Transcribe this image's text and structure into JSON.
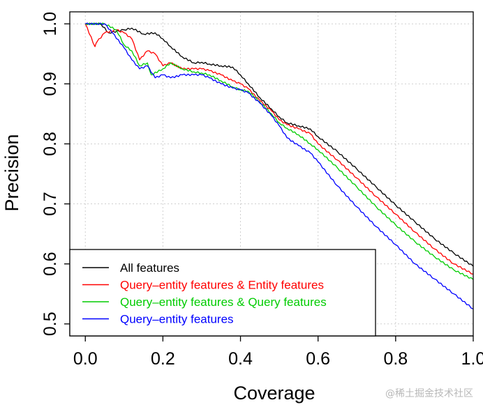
{
  "watermark": "@稀土掘金技术社区",
  "chart_data": {
    "type": "line",
    "title": "",
    "xlabel": "Coverage",
    "ylabel": "Precision",
    "xlim": [
      -0.04,
      1.0
    ],
    "ylim": [
      0.48,
      1.02
    ],
    "xticks": [
      "0.0",
      "0.2",
      "0.4",
      "0.6",
      "0.8",
      "1.0"
    ],
    "yticks": [
      "0.5",
      "0.6",
      "0.7",
      "0.8",
      "0.9",
      "1.0"
    ],
    "grid": true,
    "legend_position": "bottom-left",
    "series": [
      {
        "name": "All features",
        "color": "#000000",
        "x": [
          0.0,
          0.04,
          0.06,
          0.1,
          0.12,
          0.15,
          0.18,
          0.2,
          0.22,
          0.25,
          0.28,
          0.3,
          0.32,
          0.35,
          0.38,
          0.4,
          0.42,
          0.45,
          0.48,
          0.5,
          0.52,
          0.55,
          0.58,
          0.6,
          0.65,
          0.7,
          0.75,
          0.8,
          0.85,
          0.9,
          0.95,
          1.0
        ],
        "y": [
          1.0,
          1.0,
          0.985,
          0.99,
          0.993,
          0.983,
          0.985,
          0.975,
          0.962,
          0.945,
          0.935,
          0.936,
          0.933,
          0.93,
          0.928,
          0.915,
          0.9,
          0.877,
          0.858,
          0.845,
          0.835,
          0.83,
          0.825,
          0.812,
          0.787,
          0.758,
          0.728,
          0.698,
          0.67,
          0.642,
          0.618,
          0.596
        ]
      },
      {
        "name": "Query–entity features & Entity features",
        "color": "#ff0000",
        "x": [
          0.0,
          0.025,
          0.03,
          0.05,
          0.08,
          0.1,
          0.12,
          0.14,
          0.16,
          0.18,
          0.2,
          0.22,
          0.25,
          0.28,
          0.3,
          0.32,
          0.35,
          0.38,
          0.4,
          0.42,
          0.45,
          0.48,
          0.5,
          0.52,
          0.55,
          0.58,
          0.6,
          0.65,
          0.7,
          0.75,
          0.8,
          0.85,
          0.9,
          0.95,
          1.0
        ],
        "y": [
          1.0,
          0.962,
          0.97,
          0.985,
          0.99,
          0.985,
          0.975,
          0.94,
          0.955,
          0.95,
          0.93,
          0.935,
          0.925,
          0.925,
          0.925,
          0.922,
          0.915,
          0.905,
          0.9,
          0.892,
          0.872,
          0.855,
          0.84,
          0.832,
          0.825,
          0.817,
          0.8,
          0.773,
          0.743,
          0.712,
          0.683,
          0.653,
          0.625,
          0.6,
          0.583
        ]
      },
      {
        "name": "Query–entity features & Query features",
        "color": "#00cc00",
        "x": [
          0.0,
          0.05,
          0.08,
          0.1,
          0.12,
          0.14,
          0.16,
          0.17,
          0.2,
          0.22,
          0.25,
          0.28,
          0.3,
          0.32,
          0.35,
          0.38,
          0.4,
          0.42,
          0.45,
          0.48,
          0.5,
          0.52,
          0.55,
          0.58,
          0.6,
          0.65,
          0.7,
          0.75,
          0.8,
          0.85,
          0.9,
          0.95,
          1.0
        ],
        "y": [
          1.0,
          1.0,
          0.99,
          0.965,
          0.955,
          0.93,
          0.935,
          0.915,
          0.925,
          0.935,
          0.925,
          0.92,
          0.918,
          0.915,
          0.905,
          0.895,
          0.89,
          0.888,
          0.87,
          0.85,
          0.835,
          0.826,
          0.815,
          0.8,
          0.79,
          0.76,
          0.728,
          0.695,
          0.665,
          0.637,
          0.612,
          0.59,
          0.574
        ]
      },
      {
        "name": "Query–entity features",
        "color": "#0000ff",
        "x": [
          0.0,
          0.05,
          0.07,
          0.1,
          0.12,
          0.14,
          0.16,
          0.18,
          0.2,
          0.22,
          0.25,
          0.28,
          0.3,
          0.32,
          0.35,
          0.38,
          0.4,
          0.42,
          0.45,
          0.48,
          0.5,
          0.52,
          0.55,
          0.58,
          0.6,
          0.65,
          0.7,
          0.75,
          0.8,
          0.85,
          0.9,
          0.95,
          1.0
        ],
        "y": [
          1.0,
          1.0,
          0.985,
          0.96,
          0.94,
          0.925,
          0.93,
          0.91,
          0.915,
          0.91,
          0.915,
          0.915,
          0.915,
          0.91,
          0.9,
          0.893,
          0.89,
          0.885,
          0.868,
          0.847,
          0.83,
          0.81,
          0.797,
          0.785,
          0.77,
          0.73,
          0.695,
          0.662,
          0.632,
          0.6,
          0.575,
          0.55,
          0.525
        ]
      }
    ]
  }
}
